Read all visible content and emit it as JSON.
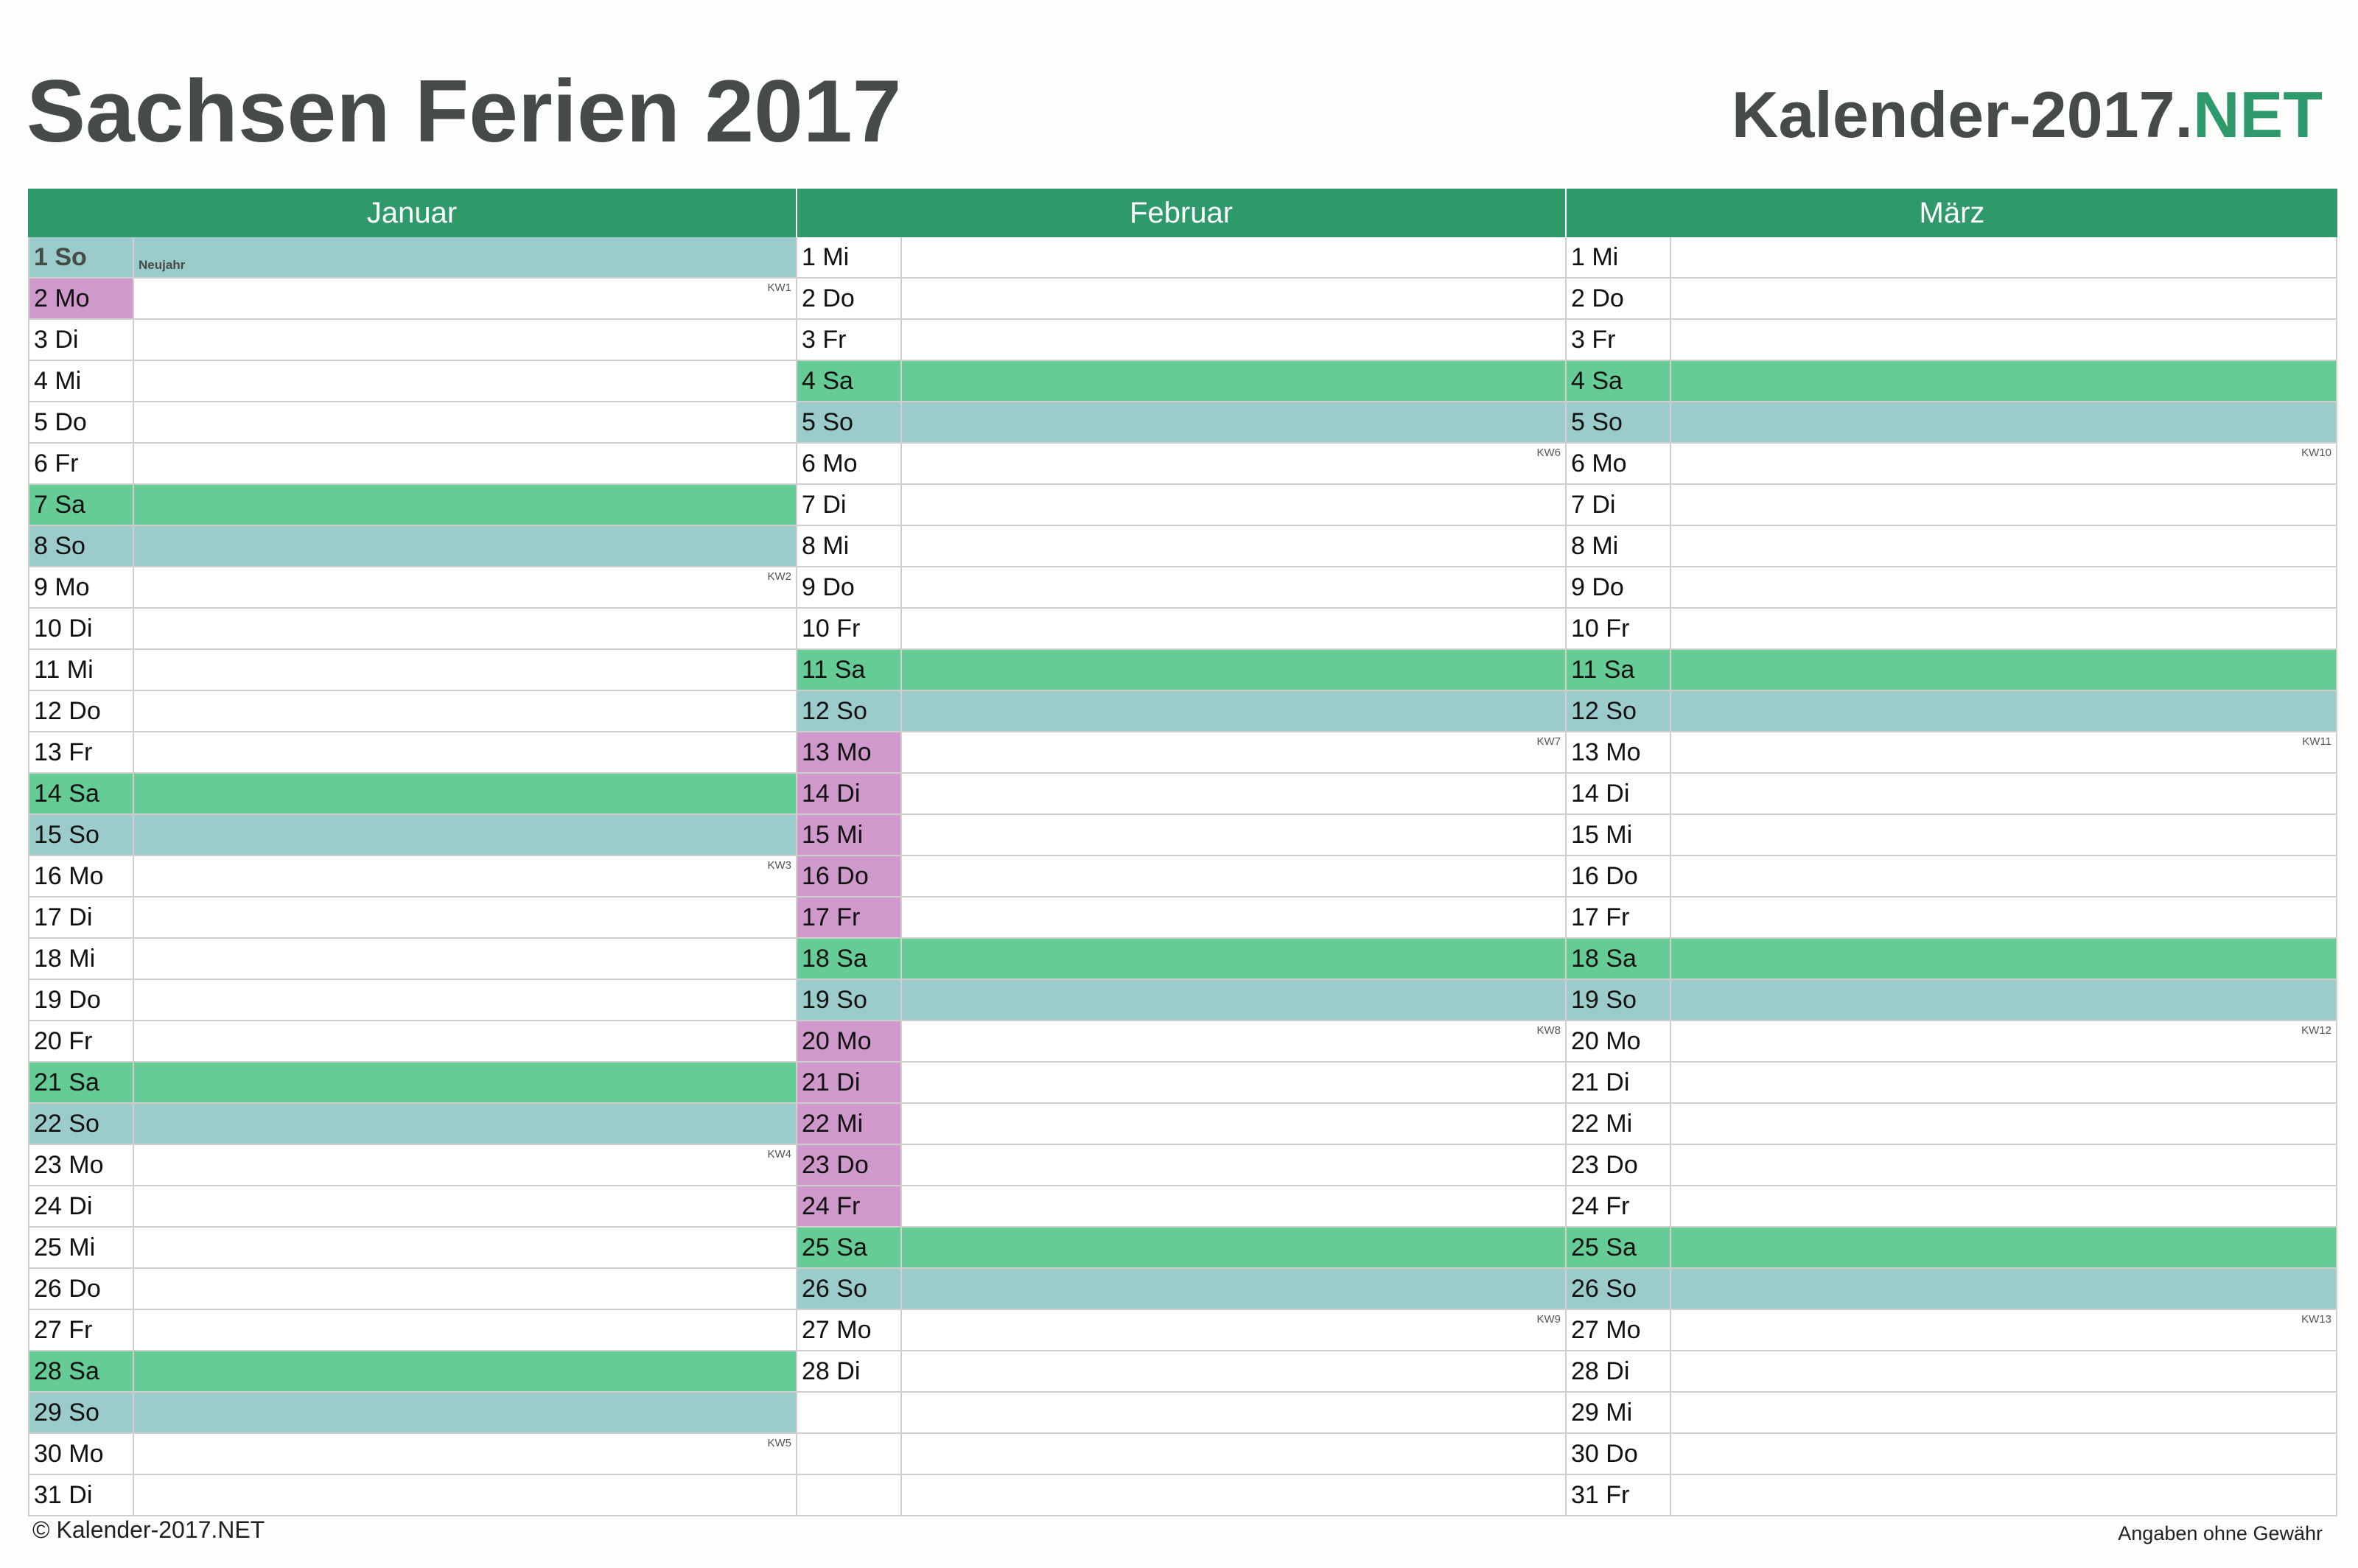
{
  "title": "Sachsen Ferien 2017",
  "brand": {
    "main": "Kalender-2017.",
    "accent": "NET"
  },
  "colors": {
    "header": "#2e9a6b",
    "saturday": "#65cc95",
    "sunday": "#9ccbcb",
    "vacation": "#cf99cc"
  },
  "months": [
    {
      "name": "Januar",
      "days": [
        {
          "label": "1 So",
          "type": "sun",
          "holiday": "Neujahr"
        },
        {
          "label": "2 Mo",
          "type": "vac",
          "kw": "KW1"
        },
        {
          "label": "3 Di"
        },
        {
          "label": "4 Mi"
        },
        {
          "label": "5 Do"
        },
        {
          "label": "6 Fr"
        },
        {
          "label": "7 Sa",
          "type": "sat"
        },
        {
          "label": "8 So",
          "type": "sun"
        },
        {
          "label": "9 Mo",
          "kw": "KW2"
        },
        {
          "label": "10 Di"
        },
        {
          "label": "11 Mi"
        },
        {
          "label": "12 Do"
        },
        {
          "label": "13 Fr"
        },
        {
          "label": "14 Sa",
          "type": "sat"
        },
        {
          "label": "15 So",
          "type": "sun"
        },
        {
          "label": "16 Mo",
          "kw": "KW3"
        },
        {
          "label": "17 Di"
        },
        {
          "label": "18 Mi"
        },
        {
          "label": "19 Do"
        },
        {
          "label": "20 Fr"
        },
        {
          "label": "21 Sa",
          "type": "sat"
        },
        {
          "label": "22 So",
          "type": "sun"
        },
        {
          "label": "23 Mo",
          "kw": "KW4"
        },
        {
          "label": "24 Di"
        },
        {
          "label": "25 Mi"
        },
        {
          "label": "26 Do"
        },
        {
          "label": "27 Fr"
        },
        {
          "label": "28 Sa",
          "type": "sat"
        },
        {
          "label": "29 So",
          "type": "sun"
        },
        {
          "label": "30 Mo",
          "kw": "KW5"
        },
        {
          "label": "31 Di"
        }
      ]
    },
    {
      "name": "Februar",
      "days": [
        {
          "label": "1 Mi"
        },
        {
          "label": "2 Do"
        },
        {
          "label": "3 Fr"
        },
        {
          "label": "4 Sa",
          "type": "sat"
        },
        {
          "label": "5 So",
          "type": "sun"
        },
        {
          "label": "6 Mo",
          "kw": "KW6"
        },
        {
          "label": "7 Di"
        },
        {
          "label": "8 Mi"
        },
        {
          "label": "9 Do"
        },
        {
          "label": "10 Fr"
        },
        {
          "label": "11 Sa",
          "type": "sat"
        },
        {
          "label": "12 So",
          "type": "sun"
        },
        {
          "label": "13 Mo",
          "type": "vac",
          "kw": "KW7"
        },
        {
          "label": "14 Di",
          "type": "vac"
        },
        {
          "label": "15 Mi",
          "type": "vac"
        },
        {
          "label": "16 Do",
          "type": "vac"
        },
        {
          "label": "17 Fr",
          "type": "vac"
        },
        {
          "label": "18 Sa",
          "type": "sat"
        },
        {
          "label": "19 So",
          "type": "sun"
        },
        {
          "label": "20 Mo",
          "type": "vac",
          "kw": "KW8"
        },
        {
          "label": "21 Di",
          "type": "vac"
        },
        {
          "label": "22 Mi",
          "type": "vac"
        },
        {
          "label": "23 Do",
          "type": "vac"
        },
        {
          "label": "24 Fr",
          "type": "vac"
        },
        {
          "label": "25 Sa",
          "type": "sat"
        },
        {
          "label": "26 So",
          "type": "sun"
        },
        {
          "label": "27 Mo",
          "kw": "KW9"
        },
        {
          "label": "28 Di"
        },
        {
          "label": "",
          "type": "empty"
        },
        {
          "label": "",
          "type": "empty"
        },
        {
          "label": "",
          "type": "empty"
        }
      ]
    },
    {
      "name": "März",
      "days": [
        {
          "label": "1 Mi"
        },
        {
          "label": "2 Do"
        },
        {
          "label": "3 Fr"
        },
        {
          "label": "4 Sa",
          "type": "sat"
        },
        {
          "label": "5 So",
          "type": "sun"
        },
        {
          "label": "6 Mo",
          "kw": "KW10"
        },
        {
          "label": "7 Di"
        },
        {
          "label": "8 Mi"
        },
        {
          "label": "9 Do"
        },
        {
          "label": "10 Fr"
        },
        {
          "label": "11 Sa",
          "type": "sat"
        },
        {
          "label": "12 So",
          "type": "sun"
        },
        {
          "label": "13 Mo",
          "kw": "KW11"
        },
        {
          "label": "14 Di"
        },
        {
          "label": "15 Mi"
        },
        {
          "label": "16 Do"
        },
        {
          "label": "17 Fr"
        },
        {
          "label": "18 Sa",
          "type": "sat"
        },
        {
          "label": "19 So",
          "type": "sun"
        },
        {
          "label": "20 Mo",
          "kw": "KW12"
        },
        {
          "label": "21 Di"
        },
        {
          "label": "22 Mi"
        },
        {
          "label": "23 Do"
        },
        {
          "label": "24 Fr"
        },
        {
          "label": "25 Sa",
          "type": "sat"
        },
        {
          "label": "26 So",
          "type": "sun"
        },
        {
          "label": "27 Mo",
          "kw": "KW13"
        },
        {
          "label": "28 Di"
        },
        {
          "label": "29 Mi"
        },
        {
          "label": "30 Do"
        },
        {
          "label": "31 Fr"
        }
      ]
    }
  ],
  "footer": {
    "copyright": "© Kalender-2017.NET",
    "disclaimer": "Angaben ohne Gewähr"
  }
}
